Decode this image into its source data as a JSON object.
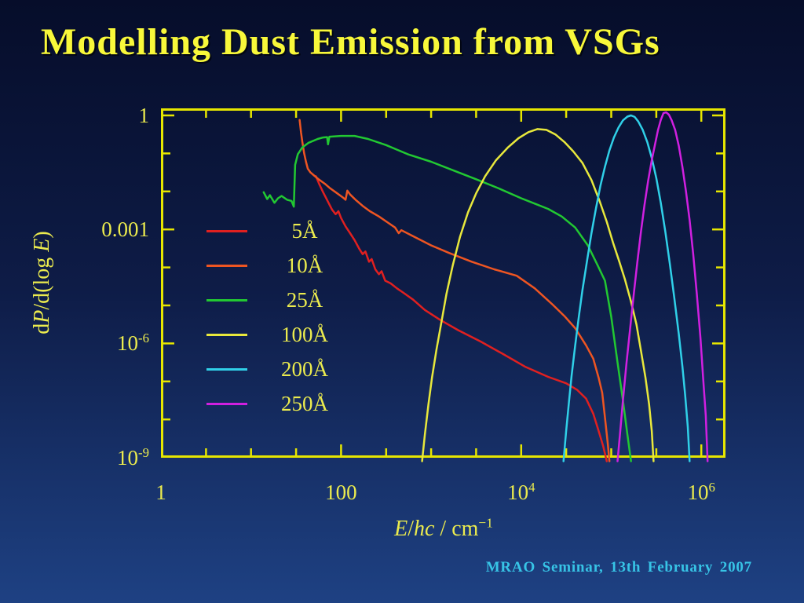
{
  "slide": {
    "title": "Modelling Dust Emission from VSGs",
    "footer": "MRAO Seminar, 13th February 2007"
  },
  "colors": {
    "background_top": "#060d2a",
    "background_bottom": "#1e4183",
    "title": "#f8f83a",
    "axis": "#e6e600",
    "tick_label": "#ebeb4e",
    "footer": "#37c4e6"
  },
  "chart_data": {
    "type": "line",
    "title": "",
    "grid": false,
    "legend_position": "inside-left",
    "x_axis": {
      "scale": "log10",
      "range_log": [
        0,
        6.27
      ],
      "tick_step_log": 0.5,
      "major_every_decades": 2,
      "labeled_ticks": [
        {
          "log": 0,
          "base": "1",
          "exp": ""
        },
        {
          "log": 2,
          "base": "100",
          "exp": ""
        },
        {
          "log": 4,
          "base": "10",
          "exp": "4"
        },
        {
          "log": 6,
          "base": "10",
          "exp": "6"
        }
      ],
      "title_parts": [
        {
          "text": "E",
          "italic": true
        },
        {
          "text": "/",
          "italic": false
        },
        {
          "text": "hc",
          "italic": true
        },
        {
          "text": " / cm",
          "italic": false
        },
        {
          "text": "−1",
          "italic": false,
          "sup": true
        }
      ]
    },
    "y_axis": {
      "scale": "log10",
      "range_log": [
        -9,
        0.19
      ],
      "tick_step_log": 1,
      "major_every_decades": 3,
      "labeled_ticks": [
        {
          "log": 0,
          "base": "1",
          "exp": ""
        },
        {
          "log": -3,
          "base": "0.001",
          "exp": ""
        },
        {
          "log": -6,
          "base": "10",
          "exp": "-6"
        },
        {
          "log": -9,
          "base": "10",
          "exp": "-9"
        }
      ],
      "title_parts": [
        {
          "text": "d",
          "italic": false
        },
        {
          "text": "P",
          "italic": true
        },
        {
          "text": "/d(log ",
          "italic": false
        },
        {
          "text": "E",
          "italic": true
        },
        {
          "text": ")",
          "italic": false
        }
      ]
    },
    "legend": [
      {
        "label": "5Å",
        "color": "#e02020"
      },
      {
        "label": "10Å",
        "color": "#ee5522"
      },
      {
        "label": "25Å",
        "color": "#22c832"
      },
      {
        "label": "100Å",
        "color": "#e8e83c"
      },
      {
        "label": "200Å",
        "color": "#30d0e8"
      },
      {
        "label": "250Å",
        "color": "#d020e0"
      }
    ],
    "series": [
      {
        "name": "5Å",
        "color": "#e02020",
        "points_log": [
          [
            1.72,
            -1.6
          ],
          [
            1.76,
            -1.82
          ],
          [
            1.8,
            -2.02
          ],
          [
            1.85,
            -2.25
          ],
          [
            1.9,
            -2.48
          ],
          [
            1.94,
            -2.6
          ],
          [
            1.97,
            -2.52
          ],
          [
            2.0,
            -2.7
          ],
          [
            2.05,
            -2.92
          ],
          [
            2.1,
            -3.1
          ],
          [
            2.15,
            -3.28
          ],
          [
            2.2,
            -3.5
          ],
          [
            2.24,
            -3.65
          ],
          [
            2.27,
            -3.58
          ],
          [
            2.31,
            -3.85
          ],
          [
            2.34,
            -3.78
          ],
          [
            2.38,
            -4.05
          ],
          [
            2.42,
            -4.18
          ],
          [
            2.45,
            -4.1
          ],
          [
            2.49,
            -4.35
          ],
          [
            2.55,
            -4.42
          ],
          [
            2.62,
            -4.55
          ],
          [
            2.7,
            -4.68
          ],
          [
            2.8,
            -4.85
          ],
          [
            2.93,
            -5.12
          ],
          [
            3.1,
            -5.38
          ],
          [
            3.3,
            -5.65
          ],
          [
            3.55,
            -5.95
          ],
          [
            3.8,
            -6.28
          ],
          [
            4.05,
            -6.62
          ],
          [
            4.3,
            -6.88
          ],
          [
            4.5,
            -7.05
          ],
          [
            4.62,
            -7.22
          ],
          [
            4.72,
            -7.45
          ],
          [
            4.8,
            -7.85
          ],
          [
            4.86,
            -8.3
          ],
          [
            4.91,
            -8.7
          ],
          [
            4.95,
            -9.1
          ]
        ]
      },
      {
        "name": "10Å",
        "color": "#ee5522",
        "points_log": [
          [
            1.54,
            -0.12
          ],
          [
            1.555,
            -0.45
          ],
          [
            1.57,
            -0.7
          ],
          [
            1.59,
            -1.0
          ],
          [
            1.61,
            -1.22
          ],
          [
            1.63,
            -1.4
          ],
          [
            1.66,
            -1.5
          ],
          [
            1.7,
            -1.58
          ],
          [
            1.75,
            -1.68
          ],
          [
            1.82,
            -1.8
          ],
          [
            1.88,
            -1.92
          ],
          [
            1.95,
            -2.04
          ],
          [
            2.02,
            -2.16
          ],
          [
            2.05,
            -2.22
          ],
          [
            2.07,
            -1.98
          ],
          [
            2.1,
            -2.08
          ],
          [
            2.16,
            -2.22
          ],
          [
            2.24,
            -2.38
          ],
          [
            2.32,
            -2.52
          ],
          [
            2.42,
            -2.66
          ],
          [
            2.52,
            -2.82
          ],
          [
            2.6,
            -2.95
          ],
          [
            2.64,
            -3.1
          ],
          [
            2.67,
            -3.02
          ],
          [
            2.8,
            -3.18
          ],
          [
            3.0,
            -3.42
          ],
          [
            3.2,
            -3.62
          ],
          [
            3.45,
            -3.85
          ],
          [
            3.7,
            -4.05
          ],
          [
            3.95,
            -4.22
          ],
          [
            4.15,
            -4.55
          ],
          [
            4.35,
            -4.98
          ],
          [
            4.48,
            -5.28
          ],
          [
            4.6,
            -5.6
          ],
          [
            4.72,
            -6.05
          ],
          [
            4.8,
            -6.4
          ],
          [
            4.86,
            -6.9
          ],
          [
            4.9,
            -7.3
          ],
          [
            4.93,
            -7.95
          ],
          [
            4.96,
            -8.6
          ],
          [
            4.98,
            -9.1
          ]
        ]
      },
      {
        "name": "25Å",
        "color": "#22c832",
        "points_log": [
          [
            1.14,
            -2.02
          ],
          [
            1.18,
            -2.2
          ],
          [
            1.21,
            -2.1
          ],
          [
            1.26,
            -2.3
          ],
          [
            1.3,
            -2.18
          ],
          [
            1.34,
            -2.12
          ],
          [
            1.4,
            -2.22
          ],
          [
            1.45,
            -2.25
          ],
          [
            1.475,
            -2.4
          ],
          [
            1.49,
            -1.3
          ],
          [
            1.52,
            -1.02
          ],
          [
            1.57,
            -0.84
          ],
          [
            1.64,
            -0.72
          ],
          [
            1.74,
            -0.62
          ],
          [
            1.8,
            -0.58
          ],
          [
            1.845,
            -0.57
          ],
          [
            1.855,
            -0.76
          ],
          [
            1.87,
            -0.56
          ],
          [
            2.0,
            -0.54
          ],
          [
            2.15,
            -0.54
          ],
          [
            2.3,
            -0.62
          ],
          [
            2.5,
            -0.78
          ],
          [
            2.74,
            -1.02
          ],
          [
            3.0,
            -1.22
          ],
          [
            3.25,
            -1.45
          ],
          [
            3.5,
            -1.68
          ],
          [
            3.75,
            -1.92
          ],
          [
            4.0,
            -2.18
          ],
          [
            4.15,
            -2.32
          ],
          [
            4.3,
            -2.46
          ],
          [
            4.45,
            -2.66
          ],
          [
            4.6,
            -2.95
          ],
          [
            4.74,
            -3.42
          ],
          [
            4.85,
            -3.95
          ],
          [
            4.93,
            -4.35
          ],
          [
            5.0,
            -5.3
          ],
          [
            5.07,
            -6.5
          ],
          [
            5.13,
            -7.5
          ],
          [
            5.18,
            -8.4
          ],
          [
            5.22,
            -9.1
          ]
        ]
      },
      {
        "name": "100Å",
        "color": "#e8e83c",
        "points_log": [
          [
            2.9,
            -9.1
          ],
          [
            2.93,
            -8.4
          ],
          [
            2.97,
            -7.6
          ],
          [
            3.01,
            -6.9
          ],
          [
            3.06,
            -6.15
          ],
          [
            3.11,
            -5.5
          ],
          [
            3.17,
            -4.7
          ],
          [
            3.24,
            -3.95
          ],
          [
            3.32,
            -3.2
          ],
          [
            3.41,
            -2.55
          ],
          [
            3.5,
            -2.05
          ],
          [
            3.6,
            -1.6
          ],
          [
            3.72,
            -1.18
          ],
          [
            3.85,
            -0.85
          ],
          [
            3.97,
            -0.6
          ],
          [
            4.08,
            -0.44
          ],
          [
            4.18,
            -0.36
          ],
          [
            4.28,
            -0.38
          ],
          [
            4.38,
            -0.5
          ],
          [
            4.48,
            -0.7
          ],
          [
            4.58,
            -0.95
          ],
          [
            4.68,
            -1.25
          ],
          [
            4.78,
            -1.7
          ],
          [
            4.87,
            -2.25
          ],
          [
            4.95,
            -2.8
          ],
          [
            5.02,
            -3.35
          ],
          [
            5.09,
            -3.85
          ],
          [
            5.15,
            -4.3
          ],
          [
            5.22,
            -4.9
          ],
          [
            5.28,
            -5.5
          ],
          [
            5.33,
            -6.2
          ],
          [
            5.38,
            -6.9
          ],
          [
            5.42,
            -7.6
          ],
          [
            5.45,
            -8.3
          ],
          [
            5.47,
            -9.1
          ]
        ]
      },
      {
        "name": "200Å",
        "color": "#30d0e8",
        "points_log": [
          [
            4.47,
            -9.1
          ],
          [
            4.5,
            -8.3
          ],
          [
            4.53,
            -7.55
          ],
          [
            4.56,
            -6.85
          ],
          [
            4.6,
            -6.05
          ],
          [
            4.64,
            -5.3
          ],
          [
            4.68,
            -4.6
          ],
          [
            4.73,
            -3.85
          ],
          [
            4.78,
            -3.1
          ],
          [
            4.83,
            -2.45
          ],
          [
            4.88,
            -1.85
          ],
          [
            4.93,
            -1.35
          ],
          [
            4.98,
            -0.92
          ],
          [
            5.03,
            -0.58
          ],
          [
            5.08,
            -0.32
          ],
          [
            5.13,
            -0.13
          ],
          [
            5.18,
            -0.03
          ],
          [
            5.22,
            0.0
          ],
          [
            5.26,
            -0.04
          ],
          [
            5.3,
            -0.16
          ],
          [
            5.35,
            -0.38
          ],
          [
            5.4,
            -0.7
          ],
          [
            5.45,
            -1.12
          ],
          [
            5.5,
            -1.65
          ],
          [
            5.55,
            -2.3
          ],
          [
            5.6,
            -3.05
          ],
          [
            5.65,
            -3.9
          ],
          [
            5.7,
            -4.8
          ],
          [
            5.75,
            -5.75
          ],
          [
            5.79,
            -6.6
          ],
          [
            5.82,
            -7.35
          ],
          [
            5.85,
            -8.2
          ],
          [
            5.87,
            -9.1
          ]
        ]
      },
      {
        "name": "250Å",
        "color": "#d020e0",
        "points_log": [
          [
            5.07,
            -9.1
          ],
          [
            5.1,
            -8.3
          ],
          [
            5.13,
            -7.5
          ],
          [
            5.17,
            -6.5
          ],
          [
            5.21,
            -5.6
          ],
          [
            5.25,
            -4.7
          ],
          [
            5.29,
            -3.85
          ],
          [
            5.33,
            -3.05
          ],
          [
            5.37,
            -2.35
          ],
          [
            5.41,
            -1.72
          ],
          [
            5.45,
            -1.18
          ],
          [
            5.49,
            -0.72
          ],
          [
            5.52,
            -0.38
          ],
          [
            5.55,
            -0.12
          ],
          [
            5.58,
            0.06
          ],
          [
            5.61,
            0.08
          ],
          [
            5.64,
            0.02
          ],
          [
            5.67,
            -0.12
          ],
          [
            5.71,
            -0.38
          ],
          [
            5.75,
            -0.8
          ],
          [
            5.79,
            -1.35
          ],
          [
            5.83,
            -2.0
          ],
          [
            5.87,
            -2.75
          ],
          [
            5.91,
            -3.65
          ],
          [
            5.95,
            -4.7
          ],
          [
            5.99,
            -5.85
          ],
          [
            6.02,
            -6.9
          ],
          [
            6.05,
            -7.9
          ],
          [
            6.07,
            -9.1
          ]
        ]
      }
    ]
  }
}
